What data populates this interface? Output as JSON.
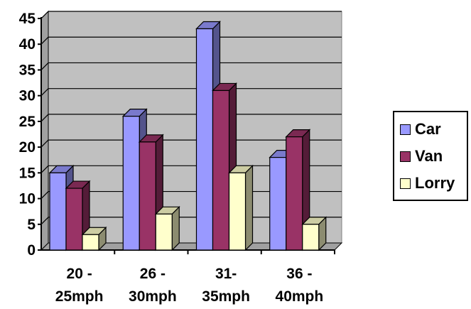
{
  "chart_data": {
    "type": "bar",
    "categories": [
      "20 -\n25mph",
      "26 -\n30mph",
      "31-\n35mph",
      "36 -\n40mph"
    ],
    "series": [
      {
        "name": "Car",
        "values": [
          15,
          26,
          43,
          18
        ],
        "color": "#9999ff"
      },
      {
        "name": "Van",
        "values": [
          12,
          21,
          31,
          22
        ],
        "color": "#993366"
      },
      {
        "name": "Lorry",
        "values": [
          3,
          7,
          15,
          5
        ],
        "color": "#ffffcc"
      }
    ],
    "title": "",
    "xlabel": "",
    "ylabel": "",
    "ylim": [
      0,
      45
    ],
    "yticks": [
      0,
      5,
      10,
      15,
      20,
      25,
      30,
      35,
      40,
      45
    ],
    "grid": true,
    "three_d": true,
    "plot_background": "#c0c0c0",
    "legend_position": "right"
  }
}
